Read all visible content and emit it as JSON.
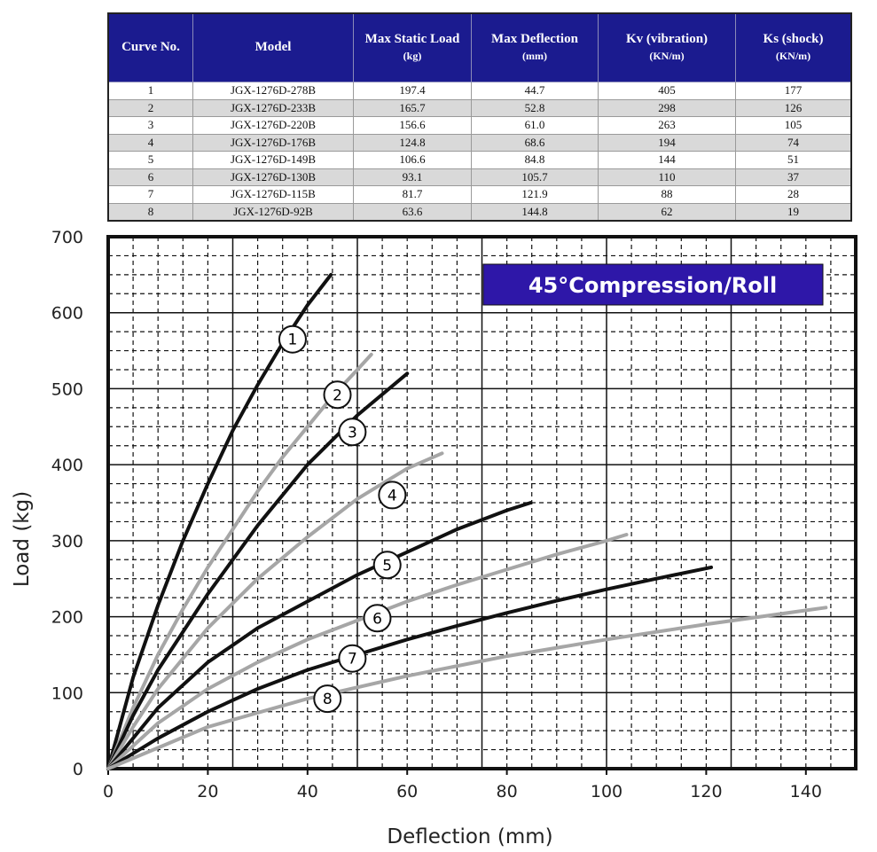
{
  "table": {
    "headers": [
      {
        "text": "Curve No.",
        "unit": ""
      },
      {
        "text": "Model",
        "unit": ""
      },
      {
        "text": "Max Static Load",
        "unit": "(kg)"
      },
      {
        "text": "Max Deflection",
        "unit": "(mm)"
      },
      {
        "text": "Kv (vibration)",
        "unit": "(KN/m)"
      },
      {
        "text": "Ks (shock)",
        "unit": "(KN/m)"
      }
    ],
    "rows": [
      [
        "1",
        "JGX-1276D-278B",
        "197.4",
        "44.7",
        "405",
        "177"
      ],
      [
        "2",
        "JGX-1276D-233B",
        "165.7",
        "52.8",
        "298",
        "126"
      ],
      [
        "3",
        "JGX-1276D-220B",
        "156.6",
        "61.0",
        "263",
        "105"
      ],
      [
        "4",
        "JGX-1276D-176B",
        "124.8",
        "68.6",
        "194",
        "74"
      ],
      [
        "5",
        "JGX-1276D-149B",
        "106.6",
        "84.8",
        "144",
        "51"
      ],
      [
        "6",
        "JGX-1276D-130B",
        "93.1",
        "105.7",
        "110",
        "37"
      ],
      [
        "7",
        "JGX-1276D-115B",
        "81.7",
        "121.9",
        "88",
        "28"
      ],
      [
        "8",
        "JGX-1276D-92B",
        "63.6",
        "144.8",
        "62",
        "19"
      ]
    ]
  },
  "colors": {
    "header_bg": "#1b1b8f",
    "title_bg": "#2e17a8",
    "curve_dark": "#111111",
    "curve_light": "#a6a6a6"
  },
  "chart_data": {
    "type": "line",
    "title": "45°Compression/Roll",
    "xlabel": "Deflection (mm)",
    "ylabel": "Load (kg)",
    "xlim": [
      0,
      150
    ],
    "ylim": [
      0,
      700
    ],
    "xticks": [
      0,
      20,
      40,
      60,
      80,
      100,
      120,
      140
    ],
    "yticks": [
      0,
      100,
      200,
      300,
      400,
      500,
      600,
      700
    ],
    "grid": true,
    "series": [
      {
        "name": "1",
        "style": "dark",
        "label_at": [
          37,
          565
        ],
        "x": [
          0,
          5,
          10,
          15,
          20,
          25,
          30,
          35,
          40,
          44.7
        ],
        "y": [
          0,
          120,
          215,
          300,
          375,
          445,
          505,
          560,
          610,
          650
        ]
      },
      {
        "name": "2",
        "style": "light",
        "label_at": [
          46,
          492
        ],
        "x": [
          0,
          5,
          10,
          15,
          20,
          25,
          30,
          35,
          40,
          45,
          50,
          52.8
        ],
        "y": [
          0,
          80,
          150,
          210,
          265,
          315,
          365,
          410,
          450,
          490,
          525,
          545
        ]
      },
      {
        "name": "3",
        "style": "dark",
        "label_at": [
          49,
          443
        ],
        "x": [
          0,
          5,
          10,
          20,
          30,
          40,
          50,
          60
        ],
        "y": [
          0,
          70,
          130,
          230,
          320,
          400,
          465,
          520
        ]
      },
      {
        "name": "4",
        "style": "light",
        "label_at": [
          57,
          360
        ],
        "x": [
          0,
          5,
          10,
          20,
          30,
          40,
          50,
          60,
          67
        ],
        "y": [
          0,
          55,
          105,
          185,
          250,
          305,
          355,
          395,
          415
        ]
      },
      {
        "name": "5",
        "style": "dark",
        "label_at": [
          56,
          268
        ],
        "x": [
          0,
          10,
          20,
          30,
          40,
          50,
          60,
          70,
          80,
          84.8
        ],
        "y": [
          0,
          80,
          140,
          185,
          220,
          255,
          285,
          315,
          340,
          350
        ]
      },
      {
        "name": "6",
        "style": "light",
        "label_at": [
          54,
          198
        ],
        "x": [
          0,
          10,
          20,
          30,
          40,
          50,
          60,
          70,
          80,
          90,
          100,
          104
        ],
        "y": [
          0,
          60,
          105,
          140,
          170,
          195,
          220,
          242,
          262,
          282,
          300,
          308
        ]
      },
      {
        "name": "7",
        "style": "dark",
        "label_at": [
          49,
          145
        ],
        "x": [
          0,
          10,
          20,
          30,
          40,
          50,
          60,
          70,
          80,
          90,
          100,
          110,
          121
        ],
        "y": [
          0,
          40,
          75,
          105,
          130,
          150,
          170,
          188,
          205,
          221,
          236,
          250,
          265
        ]
      },
      {
        "name": "8",
        "style": "light",
        "label_at": [
          44,
          92
        ],
        "x": [
          0,
          20,
          40,
          60,
          80,
          100,
          120,
          144
        ],
        "y": [
          0,
          55,
          92,
          122,
          148,
          170,
          190,
          212
        ]
      }
    ]
  }
}
